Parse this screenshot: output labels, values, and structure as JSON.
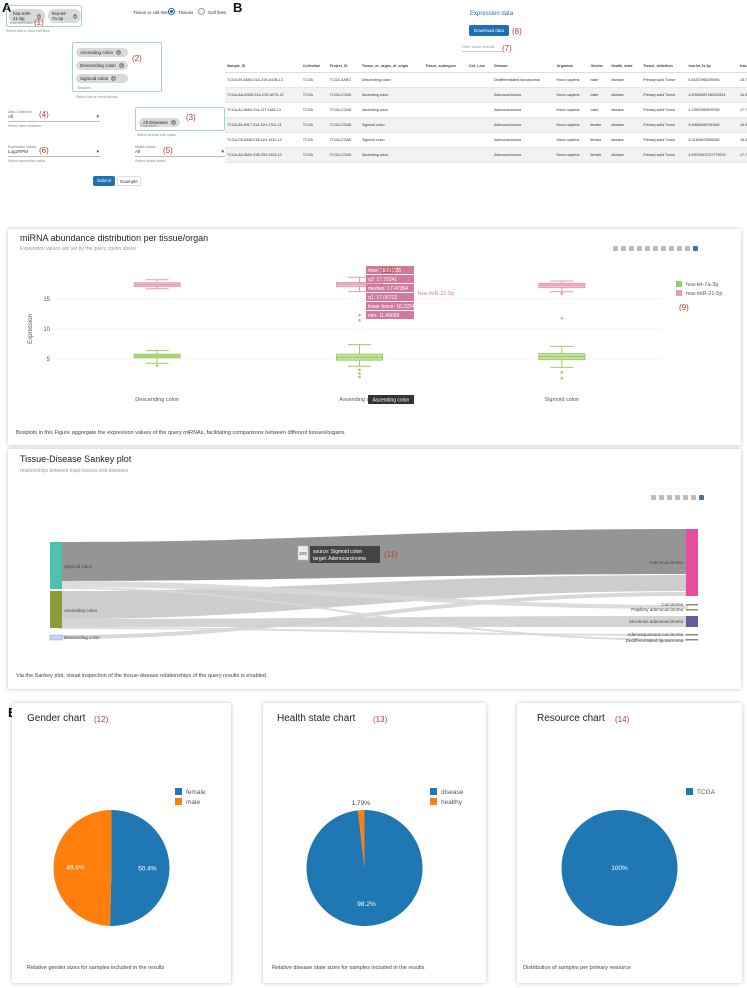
{
  "panel_a": {
    "letter": "A",
    "mirna_chips": [
      "hsa-miR-21-5p",
      "hsa-let-7a-3p"
    ],
    "mirna_label": "hsa-miRNAs",
    "mirna_hint": "Select one or more miRNAs",
    "ann1": "(1)",
    "toggle_label": "Tissue or cell line:",
    "radio_tissues": "Tissues",
    "radio_cells": "Cell lines",
    "tissue_chips": [
      "Ascending colon",
      "Descending colon",
      "Sigmoid colon"
    ],
    "tissue_placeholder": "Tissues",
    "tissue_hint": "Select one or more tissues",
    "ann2": "(2)",
    "data_collection_label": "Data Collection",
    "data_collection_value": "All",
    "data_collection_hint": "Select data collection",
    "ann4": "(4)",
    "disease_chip": "All Diseases",
    "disease_placeholder": "Diseases",
    "disease_hint": "Select at least one option",
    "ann3": "(3)",
    "expression_label": "Expression values",
    "expression_value": "Log2RPM",
    "expression_hint": "Select expression value",
    "ann6": "(6)",
    "health_label": "Health status",
    "health_value": "All",
    "health_hint": "Select health status",
    "ann5": "(5)",
    "submit": "Submit",
    "example": "Example"
  },
  "panel_b": {
    "letter": "B",
    "title": "Expression data",
    "download": "Download data",
    "ann8": "(8)",
    "filter_placeholder": "Filter these results",
    "ann7": "(7)",
    "columns": [
      "Sample_ID",
      "Collection",
      "Project_ID",
      "Tissue_or_organ_of_origin",
      "Tissue_subregion",
      "Cell_Line",
      "Disease",
      "Organism",
      "Gender",
      "Health_state",
      "Tissue_definition",
      "hsa-let-7a-3p",
      "hsa-miR-2"
    ],
    "rows": [
      [
        "TCGA-09-A8S0-01A-21R-A41B-13",
        "TCGA",
        "TCGA-SARC",
        "Descending colon",
        "",
        "",
        "Dedifferentiated liposarcoma",
        "Homo sapiens",
        "male",
        "disease",
        "Primary solid Tumor",
        "5.84337965295946",
        "16.79979"
      ],
      [
        "TCGA-AA-A00D-01A-21R-A075-13",
        "TCGA",
        "TCGA-COAD",
        "Ascending colon",
        "",
        "",
        "Adenocarcinoma",
        "Homo sapiens",
        "male",
        "disease",
        "Primary solid Tumor",
        "4.20930087180032814",
        "16.07741"
      ],
      [
        "TCGA-A2-5683-01A-21T-1652-13",
        "TCGA",
        "TCGA-COAD",
        "Ascending colon",
        "",
        "",
        "Adenocarcinoma",
        "Homo sapiens",
        "male",
        "disease",
        "Primary solid Tumor",
        "4.23503965499765",
        "17.79601"
      ],
      [
        "TCGA-5A-6917-01A-11H-1702-13",
        "TCGA",
        "TCGA-COAD",
        "Sigmoid colon",
        "",
        "",
        "Adenocarcinoma",
        "Homo sapiens",
        "female",
        "disease",
        "Primary solid Tumor",
        "5.49669469750466",
        "18.51568"
      ],
      [
        "TCGA-D5-6548-01B-11H-1932-13",
        "TCGA",
        "TCGA-COAD",
        "Sigmoid colon",
        "",
        "",
        "Adenocarcinoma",
        "Homo sapiens",
        "female",
        "disease",
        "Primary solid Tumor",
        "5.31469625656266",
        "18.02381"
      ],
      [
        "TCGA-A6-5659-01B-03R-2303-13",
        "TCGA",
        "TCGA-COAD",
        "Ascending colon",
        "",
        "",
        "Adenocarcinoma",
        "Homo sapiens",
        "female",
        "disease",
        "Primary solid Tumor",
        "4.49576007027779578",
        "17.71310"
      ]
    ]
  },
  "panel_c": {
    "letter": "C",
    "title": "miRNA abundance distribution per tissue/organ",
    "subtitle": "Expression values are set by the query option above",
    "ann10": "(10)",
    "ann9": "(9)",
    "tooltip": [
      "max: 18.62225",
      "q3: 17.75241",
      "median: 17.47364",
      "q1: 17.06713",
      "lower fence: 16.22249",
      "min: 11.45669"
    ],
    "tooltip_series": "hsa-miR-21-5p",
    "hover_label": "Ascending colon",
    "footnote": "Boxplots in this Figure aggregate the expression values of the query miRNAs, facilitating comparisons between different tissues/organs.",
    "chart_data": {
      "type": "box",
      "categories": [
        "Descending colon",
        "Ascending colon",
        "Sigmoid colon"
      ],
      "ylabel": "Expression",
      "yticks": [
        5,
        10,
        15
      ],
      "ylim": [
        0,
        20
      ],
      "series": [
        {
          "name": "hsa-let-7a-3p",
          "color": "#9ccc65",
          "boxes": [
            {
              "min": 4.3,
              "q1": 5.2,
              "median": 5.5,
              "q3": 5.8,
              "max": 6.4,
              "outliers": [
                3.9
              ]
            },
            {
              "min": 3.8,
              "q1": 4.8,
              "median": 5.3,
              "q3": 5.8,
              "max": 7.4,
              "outliers": [
                3.2,
                2.6,
                2.0
              ]
            },
            {
              "min": 3.6,
              "q1": 4.9,
              "median": 5.4,
              "q3": 5.9,
              "max": 7.1,
              "outliers": [
                2.8,
                1.8
              ]
            }
          ]
        },
        {
          "name": "hsa-miR-21-5p",
          "color": "#e899b4",
          "boxes": [
            {
              "min": 16.7,
              "q1": 17.1,
              "median": 17.4,
              "q3": 17.7,
              "max": 18.2,
              "outliers": []
            },
            {
              "min": 16.22,
              "q1": 17.07,
              "median": 17.47,
              "q3": 17.75,
              "max": 18.62,
              "outliers": [
                12.3,
                11.46
              ]
            },
            {
              "min": 16.2,
              "q1": 16.9,
              "median": 17.3,
              "q3": 17.6,
              "max": 18.0,
              "outliers": [
                15.9,
                11.8
              ]
            }
          ]
        }
      ]
    }
  },
  "panel_d": {
    "letter": "D",
    "title": "Tissue-Disease Sankey plot",
    "subtitle": "relationships between input tissues and diseases",
    "ann11": "(11)",
    "tooltip_count": "103",
    "tooltip_source": "source: Sigmoid colon",
    "tooltip_target": "target: Adenocarcinoma",
    "footnote": "Via the Sankey plot, visual inspection of the tissue-disease relationships of the query results is enabled.",
    "sources": [
      {
        "name": "Sigmoid colon",
        "color": "#4fc1b0"
      },
      {
        "name": "Ascending colon",
        "color": "#8c9a3c"
      },
      {
        "name": "Descending colon",
        "color": "#c7d3f5"
      }
    ],
    "targets": [
      {
        "name": "Adenocarcinoma",
        "color": "#e84c9c"
      },
      {
        "name": "Carcinoma",
        "color": "#888"
      },
      {
        "name": "Papillary adenocarcinoma",
        "color": "#888"
      },
      {
        "name": "Mucinous adenocarcinoma",
        "color": "#6b5b9a"
      },
      {
        "name": "Adenosquamous carcinoma",
        "color": "#888"
      },
      {
        "name": "Dedifferentiated liposarcoma",
        "color": "#888"
      }
    ]
  },
  "panel_e": {
    "letter": "E",
    "gender": {
      "title": "Gender chart",
      "ann": "(12)",
      "footnote": "Relative gender sizes for samples included in the results",
      "chart_data": {
        "type": "pie",
        "labels": [
          "female",
          "male"
        ],
        "values": [
          50.4,
          49.6
        ],
        "colors": [
          "#1f77b4",
          "#ff7f0e"
        ],
        "value_labels": [
          "50.4%",
          "49.6%"
        ]
      }
    },
    "health": {
      "title": "Health state chart",
      "ann": "(13)",
      "footnote": "Relative disease state sizes for samples included in the results",
      "chart_data": {
        "type": "pie",
        "labels": [
          "disease",
          "healthy"
        ],
        "values": [
          98.2,
          1.79
        ],
        "colors": [
          "#1f77b4",
          "#ff7f0e"
        ],
        "value_labels": [
          "98.2%",
          "1.79%"
        ]
      }
    },
    "resource": {
      "title": "Resource chart",
      "ann": "(14)",
      "footnote": "Distribution of samples per primary resource",
      "chart_data": {
        "type": "pie",
        "labels": [
          "TCGA"
        ],
        "values": [
          100
        ],
        "colors": [
          "#1f77b4"
        ],
        "value_labels": [
          "100%"
        ]
      }
    }
  }
}
